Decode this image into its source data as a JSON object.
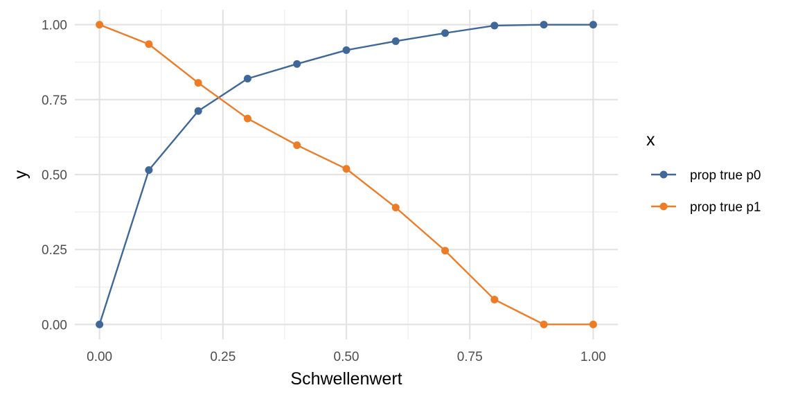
{
  "chart_data": {
    "type": "line",
    "title": "",
    "xlabel": "Schwellenwert",
    "ylabel": "y",
    "x": [
      0.0,
      0.1,
      0.2,
      0.3,
      0.4,
      0.5,
      0.6,
      0.7,
      0.8,
      0.9,
      1.0
    ],
    "xlim": [
      -0.05,
      1.05
    ],
    "ylim": [
      -0.05,
      1.05
    ],
    "x_ticks": [
      0,
      0.25,
      0.5,
      0.75,
      1.0
    ],
    "x_tick_labels": [
      "0.00",
      "0.25",
      "0.50",
      "0.75",
      "1.00"
    ],
    "y_ticks": [
      0,
      0.25,
      0.5,
      0.75,
      1.0
    ],
    "y_tick_labels": [
      "0.00",
      "0.25",
      "0.50",
      "0.75",
      "1.00"
    ],
    "grid": true,
    "markers": true,
    "legend": {
      "title": "x",
      "position": "right"
    },
    "series": [
      {
        "name": "prop true p0",
        "color": "#3f6797",
        "values": [
          0.0,
          0.515,
          0.712,
          0.82,
          0.869,
          0.915,
          0.945,
          0.972,
          0.997,
          1.0,
          1.0
        ]
      },
      {
        "name": "prop true p1",
        "color": "#ee7c26",
        "values": [
          1.0,
          0.935,
          0.806,
          0.687,
          0.598,
          0.519,
          0.39,
          0.246,
          0.083,
          0.0,
          0.0
        ]
      }
    ]
  }
}
